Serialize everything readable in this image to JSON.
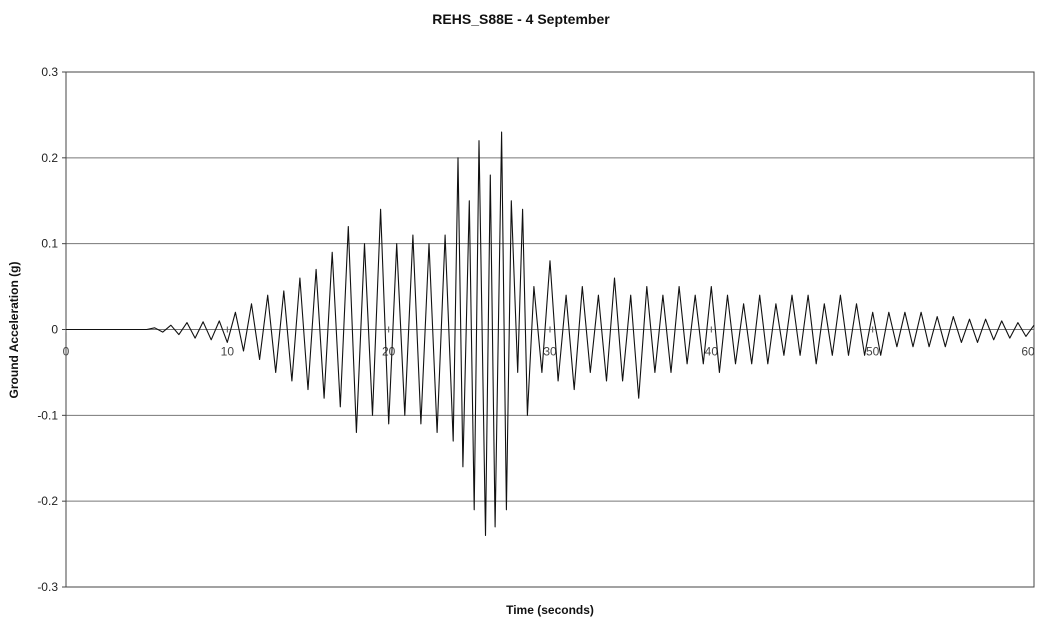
{
  "chart_data": {
    "type": "line",
    "title": "REHS_S88E - 4 September",
    "xlabel": "Time (seconds)",
    "ylabel": "Ground Acceleration (g)",
    "xlim": [
      0,
      60
    ],
    "ylim": [
      -0.3,
      0.3
    ],
    "x_ticks": [
      "0",
      "10",
      "20",
      "30",
      "40",
      "50",
      "60"
    ],
    "y_ticks": [
      "0.3",
      "0.2",
      "0.1",
      "0",
      "-0.1",
      "-0.2",
      "-0.3"
    ],
    "grid": "horizontal",
    "legend": "none",
    "line_color": "#111111",
    "series": [
      {
        "x": [
          0,
          1,
          2,
          3,
          4,
          5,
          5.5,
          6,
          6.5,
          7,
          7.5,
          8,
          8.5,
          9,
          9.5,
          10,
          10.5,
          11,
          11.5,
          12,
          12.5,
          13,
          13.5,
          14,
          14.5,
          15,
          15.5,
          16,
          16.5,
          17,
          17.5,
          18,
          18.5,
          19,
          19.5,
          20,
          20.5,
          21,
          21.5,
          22,
          22.5,
          23,
          23.5,
          24,
          24.3,
          24.6,
          25,
          25.3,
          25.6,
          26,
          26.3,
          26.6,
          27,
          27.3,
          27.6,
          28,
          28.3,
          28.6,
          29,
          29.5,
          30,
          30.5,
          31,
          31.5,
          32,
          32.5,
          33,
          33.5,
          34,
          34.5,
          35,
          35.5,
          36,
          36.5,
          37,
          37.5,
          38,
          38.5,
          39,
          39.5,
          40,
          40.5,
          41,
          41.5,
          42,
          42.5,
          43,
          43.5,
          44,
          44.5,
          45,
          45.5,
          46,
          46.5,
          47,
          47.5,
          48,
          48.5,
          49,
          49.5,
          50,
          50.5,
          51,
          51.5,
          52,
          52.5,
          53,
          53.5,
          54,
          54.5,
          55,
          55.5,
          56,
          56.5,
          57,
          57.5,
          58,
          58.5,
          59,
          59.5,
          60
        ],
        "values": [
          0,
          0,
          0,
          0,
          0,
          0,
          0.002,
          -0.003,
          0.005,
          -0.006,
          0.008,
          -0.01,
          0.009,
          -0.012,
          0.01,
          -0.015,
          0.02,
          -0.025,
          0.03,
          -0.035,
          0.04,
          -0.05,
          0.045,
          -0.06,
          0.06,
          -0.07,
          0.07,
          -0.08,
          0.09,
          -0.09,
          0.12,
          -0.12,
          0.1,
          -0.1,
          0.14,
          -0.11,
          0.1,
          -0.1,
          0.11,
          -0.11,
          0.1,
          -0.12,
          0.11,
          -0.13,
          0.2,
          -0.16,
          0.15,
          -0.21,
          0.22,
          -0.24,
          0.18,
          -0.23,
          0.23,
          -0.21,
          0.15,
          -0.05,
          0.14,
          -0.1,
          0.05,
          -0.05,
          0.08,
          -0.06,
          0.04,
          -0.07,
          0.05,
          -0.05,
          0.04,
          -0.06,
          0.06,
          -0.06,
          0.04,
          -0.08,
          0.05,
          -0.05,
          0.04,
          -0.05,
          0.05,
          -0.04,
          0.04,
          -0.04,
          0.05,
          -0.05,
          0.04,
          -0.04,
          0.03,
          -0.04,
          0.04,
          -0.04,
          0.03,
          -0.03,
          0.04,
          -0.03,
          0.04,
          -0.04,
          0.03,
          -0.03,
          0.04,
          -0.03,
          0.03,
          -0.03,
          0.02,
          -0.03,
          0.02,
          -0.02,
          0.02,
          -0.02,
          0.02,
          -0.02,
          0.015,
          -0.02,
          0.015,
          -0.015,
          0.012,
          -0.015,
          0.012,
          -0.012,
          0.01,
          -0.01,
          0.008,
          -0.008,
          0.005
        ]
      }
    ]
  }
}
